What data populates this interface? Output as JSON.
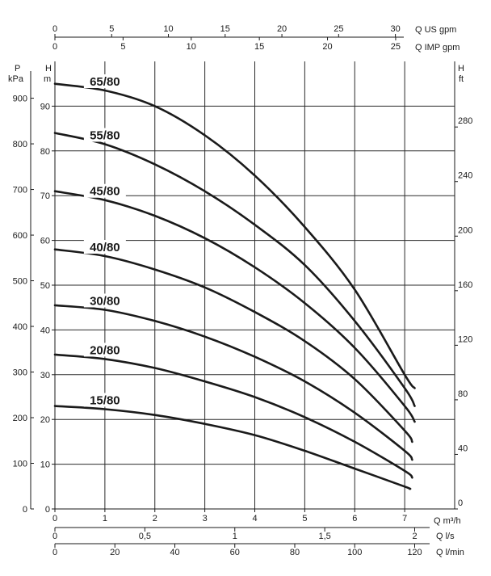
{
  "chart_data": {
    "type": "line",
    "title": "",
    "axes": {
      "bottom_primary": {
        "label": "Q m³/h",
        "ticks": [
          "0",
          "1",
          "2",
          "3",
          "4",
          "5",
          "6",
          "7"
        ],
        "range": [
          0,
          7
        ]
      },
      "bottom_ls": {
        "label": "Q l/s",
        "ticks": [
          "0",
          "0,5",
          "1",
          "1,5",
          "2"
        ],
        "values": [
          0,
          0.5,
          1,
          1.5,
          2
        ]
      },
      "bottom_lmin": {
        "label": "Q l/min",
        "ticks": [
          "0",
          "20",
          "40",
          "60",
          "80",
          "100",
          "120"
        ],
        "values": [
          0,
          20,
          40,
          60,
          80,
          100,
          120
        ]
      },
      "top_usgpm": {
        "label": "Q US gpm",
        "ticks": [
          "0",
          "5",
          "10",
          "15",
          "20",
          "25",
          "30"
        ],
        "values": [
          0,
          5,
          10,
          15,
          20,
          25,
          30
        ]
      },
      "top_impgpm": {
        "label": "Q IMP gpm",
        "ticks": [
          "0",
          "5",
          "10",
          "15",
          "20",
          "25"
        ],
        "values": [
          0,
          5,
          10,
          15,
          20,
          25
        ]
      },
      "left_kpa": {
        "label_top": "P",
        "label_bottom": "kPa",
        "ticks": [
          "0",
          "100",
          "200",
          "300",
          "400",
          "500",
          "600",
          "700",
          "800",
          "900"
        ],
        "values": [
          0,
          100,
          200,
          300,
          400,
          500,
          600,
          700,
          800,
          900
        ]
      },
      "left_m": {
        "label_top": "H",
        "label_bottom": "m",
        "ticks": [
          "0",
          "10",
          "20",
          "30",
          "40",
          "50",
          "60",
          "70",
          "80",
          "90"
        ],
        "range": [
          0,
          100
        ]
      },
      "right_ft": {
        "label_top": "H",
        "label_bottom": "ft",
        "ticks": [
          "0",
          "40",
          "80",
          "120",
          "160",
          "200",
          "240",
          "280"
        ],
        "values": [
          0,
          40,
          80,
          120,
          160,
          200,
          240,
          280
        ]
      }
    },
    "grid": true,
    "series": [
      {
        "name": "65/80",
        "x": [
          0,
          1,
          2,
          3,
          4,
          5,
          6,
          7,
          7.2
        ],
        "y": [
          95,
          93.5,
          90,
          83.5,
          74.5,
          63,
          49,
          30,
          27
        ]
      },
      {
        "name": "55/80",
        "x": [
          0,
          1,
          2,
          3,
          4,
          5,
          6,
          7,
          7.2
        ],
        "y": [
          84,
          81.5,
          77,
          71,
          63.5,
          54.5,
          42,
          27,
          23
        ]
      },
      {
        "name": "45/80",
        "x": [
          0,
          1,
          2,
          3,
          4,
          5,
          6,
          7,
          7.2
        ],
        "y": [
          71,
          69,
          65.5,
          60.5,
          54,
          46,
          36,
          23,
          19.5
        ]
      },
      {
        "name": "40/80",
        "x": [
          0,
          1,
          2,
          3,
          4,
          5,
          6,
          7,
          7.15
        ],
        "y": [
          58,
          56.5,
          53.5,
          49.5,
          44,
          37.5,
          29,
          17.5,
          15
        ]
      },
      {
        "name": "30/80",
        "x": [
          0,
          1,
          2,
          3,
          4,
          5,
          6,
          7,
          7.15
        ],
        "y": [
          45.5,
          44.5,
          42,
          38.5,
          34,
          28.5,
          21.5,
          13,
          11
        ]
      },
      {
        "name": "20/80",
        "x": [
          0,
          1,
          2,
          3,
          4,
          5,
          6,
          7,
          7.15
        ],
        "y": [
          34.5,
          33.5,
          31.5,
          28.5,
          25,
          20.5,
          15,
          8.5,
          7
        ]
      },
      {
        "name": "15/80",
        "x": [
          0,
          1,
          2,
          3,
          4,
          5,
          6,
          7,
          7.1
        ],
        "y": [
          23,
          22.3,
          21,
          19,
          16.5,
          13,
          9,
          5,
          4.5
        ]
      }
    ],
    "series_label_positions": [
      {
        "name": "65/80",
        "x": 1.0
      },
      {
        "name": "55/80",
        "x": 1.0
      },
      {
        "name": "45/80",
        "x": 1.0
      },
      {
        "name": "40/80",
        "x": 1.0
      },
      {
        "name": "30/80",
        "x": 1.0
      },
      {
        "name": "20/80",
        "x": 1.0
      },
      {
        "name": "15/80",
        "x": 1.0
      }
    ]
  }
}
